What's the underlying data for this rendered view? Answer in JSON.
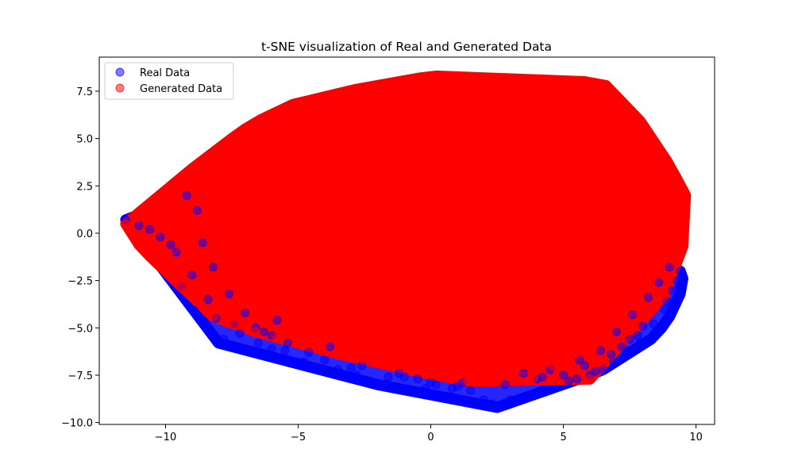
{
  "chart_data": {
    "type": "scatter",
    "title": "t-SNE visualization of Real and Generated Data",
    "xlabel": "",
    "ylabel": "",
    "xlim": [
      -12.5,
      10.7
    ],
    "ylim": [
      -10.1,
      9.3
    ],
    "x_ticks": [
      -10,
      -5,
      0,
      5,
      10
    ],
    "x_tick_labels": [
      "−10",
      "−5",
      "0",
      "5",
      "10"
    ],
    "y_ticks": [
      -10.0,
      -7.5,
      -5.0,
      -2.5,
      0.0,
      2.5,
      5.0,
      7.5
    ],
    "y_tick_labels": [
      "−10.0",
      "−7.5",
      "−5.0",
      "−2.5",
      "0.0",
      "2.5",
      "5.0",
      "7.5"
    ],
    "grid": false,
    "legend_position": "top-left",
    "series": [
      {
        "name": "Real Data",
        "color": "#0000ff",
        "alpha": 0.5,
        "x": [
          -11.5,
          -11.0,
          -10.2,
          -9.6,
          -9.0,
          -8.4,
          -8.1,
          -8.0,
          -7.8,
          -7.2,
          -6.5,
          -6.0,
          -5.5,
          -4.8,
          -3.5,
          -2.8,
          -2.3,
          -2.0,
          -1.6,
          -0.5,
          0.2,
          0.8,
          1.5,
          2.0,
          2.3,
          2.5,
          2.7,
          3.0,
          4.0,
          5.0,
          5.2,
          5.5,
          6.0,
          6.2,
          6.5,
          6.9,
          7.4,
          7.9,
          8.3,
          8.7,
          9.0,
          9.2,
          9.4,
          9.5,
          9.4,
          9.0,
          8.6,
          8.2,
          7.6,
          7.0,
          -9.2,
          -8.8,
          -8.6,
          -8.2,
          -7.6,
          -7.0,
          -6.6,
          -6.0,
          -5.4,
          -4.6,
          -4.0,
          -3.0,
          -1.0,
          0.0,
          1.0,
          3.5,
          4.5,
          5.8,
          6.8,
          7.2,
          7.8,
          8.4,
          8.8,
          9.1,
          -10.6,
          -9.8,
          -9.4,
          -8.9,
          -7.4,
          -6.3,
          -5.8,
          -3.8,
          -2.6,
          -1.2,
          -0.2,
          1.2,
          2.8,
          4.2,
          5.6,
          6.4,
          7.5,
          8.0,
          8.9,
          9.3
        ],
        "y": [
          0.7,
          0.4,
          -0.2,
          -1.0,
          -2.2,
          -3.5,
          -4.5,
          -5.8,
          -5.6,
          -5.3,
          -5.8,
          -6.1,
          -6.2,
          -6.8,
          -7.2,
          -7.5,
          -7.8,
          -8.0,
          -7.6,
          -7.7,
          -8.0,
          -8.2,
          -8.3,
          -8.8,
          -9.0,
          -9.2,
          -9.1,
          -8.8,
          -7.7,
          -7.5,
          -7.8,
          -7.7,
          -7.5,
          -7.3,
          -7.2,
          -6.8,
          -6.2,
          -5.8,
          -5.6,
          -5.0,
          -4.4,
          -3.8,
          -3.2,
          -2.4,
          -2.0,
          -1.8,
          -2.6,
          -3.4,
          -4.3,
          -5.2,
          2.0,
          1.2,
          -0.5,
          -1.8,
          -3.2,
          -4.2,
          -5.0,
          -5.4,
          -5.8,
          -6.3,
          -6.7,
          -7.1,
          -7.6,
          -7.9,
          -8.1,
          -7.4,
          -7.2,
          -7.0,
          -6.4,
          -6.0,
          -5.4,
          -4.8,
          -4.0,
          -3.0,
          0.2,
          -0.6,
          -2.8,
          -4.1,
          -4.8,
          -5.2,
          -4.6,
          -6.0,
          -7.0,
          -7.4,
          -8.2,
          -7.9,
          -8.0,
          -7.6,
          -6.7,
          -6.2,
          -5.6,
          -4.9,
          -3.6,
          -2.5
        ]
      },
      {
        "name": "Generated Data",
        "color": "#ff0000",
        "alpha": 0.5,
        "x": [
          -11.2,
          -10.8,
          -10.5,
          -10.2,
          -9.8,
          -9.4,
          -9.0,
          -8.6,
          -8.0,
          -7.5,
          -7.0,
          -6.4,
          -5.8,
          -5.2,
          -4.6,
          -4.0,
          -3.4,
          -2.8,
          -2.2,
          -1.6,
          -1.0,
          -0.4,
          0.2,
          0.8,
          1.4,
          2.0,
          2.6,
          3.2,
          3.8,
          4.4,
          5.0,
          5.6,
          6.2,
          6.8,
          7.4,
          7.9,
          8.4,
          8.9,
          9.3,
          9.6,
          9.4,
          9.1,
          8.6,
          8.2,
          7.6,
          7.0,
          6.2,
          5.4,
          4.6,
          3.8,
          3.0,
          2.2,
          1.4,
          0.6,
          -0.2,
          -1.0,
          -1.8,
          -2.6,
          -3.4,
          -4.2,
          -5.0,
          -5.8,
          -6.6,
          -7.4,
          -8.2,
          -8.8,
          -9.4,
          -10.0,
          -10.6,
          -11.0,
          -11.3,
          -11.5,
          0.0,
          0.3,
          2.3,
          3.3,
          4.7,
          5.3,
          5.8,
          6.1,
          6.6,
          7.0,
          7.6,
          7.9,
          8.3,
          8.6,
          9.0,
          9.3,
          9.5,
          9.5,
          9.2,
          8.8,
          6.0,
          3.9,
          1.0,
          -2.2,
          -3.0,
          -4.4,
          -6.0,
          -7.2
        ],
        "y": [
          0.8,
          1.2,
          1.6,
          2.0,
          2.4,
          2.9,
          3.4,
          3.8,
          4.4,
          5.0,
          5.5,
          6.0,
          6.4,
          6.8,
          7.0,
          7.2,
          7.4,
          7.6,
          7.6,
          7.8,
          8.0,
          8.2,
          8.3,
          8.2,
          8.0,
          8.0,
          8.1,
          8.0,
          8.0,
          7.9,
          7.8,
          8.0,
          7.6,
          7.2,
          6.4,
          5.9,
          4.8,
          3.8,
          2.8,
          2.0,
          0.6,
          -0.6,
          -1.6,
          -2.8,
          -3.6,
          -4.6,
          -5.6,
          -6.4,
          -7.0,
          -7.4,
          -7.6,
          -7.8,
          -7.8,
          -7.6,
          -7.4,
          -7.0,
          -6.8,
          -6.6,
          -6.4,
          -6.1,
          -5.8,
          -5.5,
          -5.2,
          -4.8,
          -4.4,
          -3.6,
          -2.8,
          -2.0,
          -1.2,
          -0.6,
          0.2,
          0.5,
          0.0,
          -2.5,
          2.5,
          -3.0,
          4.0,
          -1.2,
          8.0,
          6.5,
          7.8,
          7.2,
          5.9,
          5.8,
          4.5,
          3.6,
          3.3,
          2.6,
          1.6,
          -0.7,
          -1.5,
          -3.3,
          -7.7,
          -7.6,
          5.5,
          -1.8,
          3.6,
          -4.2,
          1.0,
          -2.2
        ]
      }
    ]
  }
}
